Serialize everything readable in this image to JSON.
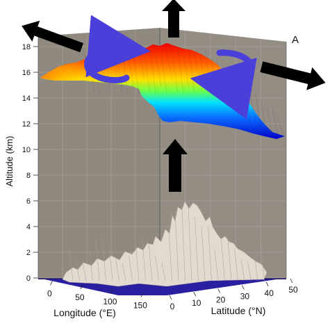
{
  "panel_label": "A",
  "chart_data": {
    "type": "surface3d",
    "x_axis": {
      "label": "Longitude (°E)",
      "ticks": [
        "0",
        "50",
        "100",
        "150"
      ],
      "range": [
        -20,
        180
      ]
    },
    "y_axis": {
      "label": "Latitude (°N)",
      "ticks": [
        "0",
        "10",
        "20",
        "30",
        "40",
        "50"
      ],
      "range": [
        0,
        50
      ]
    },
    "z_axis": {
      "label": "Altitude (km)",
      "ticks": [
        "0",
        "2",
        "4",
        "6",
        "8",
        "10",
        "12",
        "14",
        "16",
        "18"
      ],
      "range": [
        0,
        18
      ]
    },
    "terrain": {
      "description_color": "#e2d9d0",
      "peak_altitude_km": 5.6
    },
    "surface": {
      "min_altitude_km": 11,
      "max_altitude_km": 17.5,
      "colormap": [
        "#0000cc",
        "#00ccff",
        "#44ff66",
        "#ffee00",
        "#ff6600",
        "#ee0000"
      ]
    },
    "arrows": {
      "up_flow": "black",
      "outflow": "black",
      "circulation": "#4b3fd9"
    },
    "grid": true,
    "background": "#8f8980"
  }
}
